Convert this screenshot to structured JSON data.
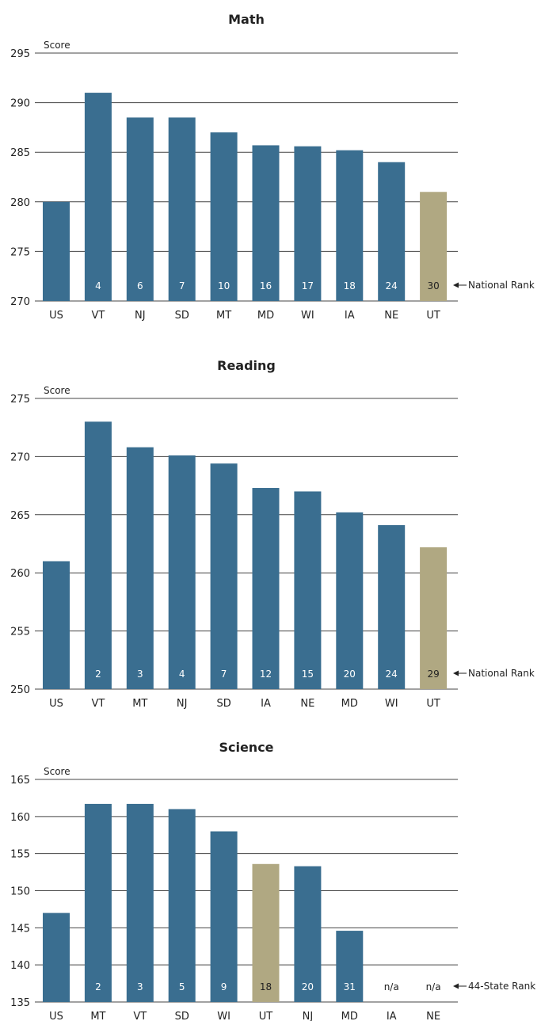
{
  "colors": {
    "bar": "#3a6e90",
    "highlight": "#b0a882",
    "rank_on_bar": "#ffffff",
    "rank_on_highlight": "#222222",
    "rank_plain": "#222222",
    "grid": "#444444"
  },
  "chart_data": [
    {
      "type": "bar",
      "title": "Math",
      "ylabel": "Score",
      "ylim": [
        270,
        295
      ],
      "yticks": [
        "270",
        "275",
        "280",
        "285",
        "290",
        "295"
      ],
      "categories": [
        "US",
        "VT",
        "NJ",
        "SD",
        "MT",
        "MD",
        "WI",
        "IA",
        "NE",
        "UT"
      ],
      "values": [
        280,
        291,
        288.5,
        288.5,
        287,
        285.7,
        285.6,
        285.2,
        284,
        281
      ],
      "ranks": [
        "",
        "4",
        "6",
        "7",
        "10",
        "16",
        "17",
        "18",
        "24",
        "30"
      ],
      "highlight": "UT",
      "rank_label": "National Rank"
    },
    {
      "type": "bar",
      "title": "Reading",
      "ylabel": "Score",
      "ylim": [
        250,
        275
      ],
      "yticks": [
        "250",
        "255",
        "260",
        "265",
        "270",
        "275"
      ],
      "categories": [
        "US",
        "VT",
        "MT",
        "NJ",
        "SD",
        "IA",
        "NE",
        "MD",
        "WI",
        "UT"
      ],
      "values": [
        261,
        273,
        270.8,
        270.1,
        269.4,
        267.3,
        267,
        265.2,
        264.1,
        262.2
      ],
      "ranks": [
        "",
        "2",
        "3",
        "4",
        "7",
        "12",
        "15",
        "20",
        "24",
        "29"
      ],
      "highlight": "UT",
      "rank_label": "National Rank"
    },
    {
      "type": "bar",
      "title": "Science",
      "ylabel": "Score",
      "ylim": [
        135,
        165
      ],
      "yticks": [
        "135",
        "140",
        "145",
        "150",
        "155",
        "160",
        "165"
      ],
      "categories": [
        "US",
        "MT",
        "VT",
        "SD",
        "WI",
        "UT",
        "NJ",
        "MD",
        "IA",
        "NE"
      ],
      "values": [
        147,
        161.7,
        161.7,
        161,
        158,
        153.6,
        153.3,
        144.6,
        null,
        null
      ],
      "ranks": [
        "",
        "2",
        "3",
        "5",
        "9",
        "18",
        "20",
        "31",
        "n/a",
        "n/a"
      ],
      "highlight": "UT",
      "rank_label": "44-State Rank"
    }
  ]
}
